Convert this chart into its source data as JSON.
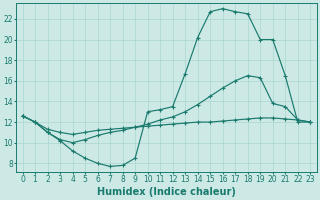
{
  "xlabel": "Humidex (Indice chaleur)",
  "bg_color": "#cce9e5",
  "grid_color": "#aad5d0",
  "line_color": "#1a7a6e",
  "xlim": [
    -0.5,
    23.5
  ],
  "ylim": [
    7.2,
    23.5
  ],
  "xticks": [
    0,
    1,
    2,
    3,
    4,
    5,
    6,
    7,
    8,
    9,
    10,
    11,
    12,
    13,
    14,
    15,
    16,
    17,
    18,
    19,
    20,
    21,
    22,
    23
  ],
  "yticks": [
    8,
    10,
    12,
    14,
    16,
    18,
    20,
    22
  ],
  "curve1_x": [
    0,
    1,
    2,
    3,
    4,
    5,
    6,
    7,
    8,
    9,
    10,
    11,
    12,
    13,
    14,
    15,
    16,
    17,
    18,
    19,
    20,
    21,
    22,
    23
  ],
  "curve1_y": [
    12.6,
    12.0,
    11.0,
    10.2,
    9.2,
    8.5,
    8.0,
    7.7,
    7.8,
    8.5,
    13.0,
    13.2,
    13.5,
    16.7,
    20.2,
    22.7,
    23.0,
    22.7,
    22.5,
    20.0,
    20.0,
    16.5,
    12.0,
    12.0
  ],
  "curve2_x": [
    0,
    1,
    2,
    3,
    4,
    5,
    6,
    7,
    8,
    9,
    10,
    11,
    12,
    13,
    14,
    15,
    16,
    17,
    18,
    19,
    20,
    21,
    22,
    23
  ],
  "curve2_y": [
    12.6,
    12.0,
    11.0,
    10.3,
    10.0,
    10.3,
    10.7,
    11.0,
    11.2,
    11.5,
    11.8,
    12.2,
    12.5,
    13.0,
    13.7,
    14.5,
    15.3,
    16.0,
    16.5,
    16.3,
    13.8,
    13.5,
    12.2,
    12.0
  ],
  "curve3_x": [
    0,
    1,
    2,
    3,
    4,
    5,
    6,
    7,
    8,
    9,
    10,
    11,
    12,
    13,
    14,
    15,
    16,
    17,
    18,
    19,
    20,
    21,
    22,
    23
  ],
  "curve3_y": [
    12.6,
    12.0,
    11.3,
    11.0,
    10.8,
    11.0,
    11.2,
    11.3,
    11.4,
    11.5,
    11.6,
    11.7,
    11.8,
    11.9,
    12.0,
    12.0,
    12.1,
    12.2,
    12.3,
    12.4,
    12.4,
    12.3,
    12.2,
    12.0
  ],
  "xlabel_fontsize": 7,
  "tick_fontsize": 5.5,
  "marker": "+"
}
